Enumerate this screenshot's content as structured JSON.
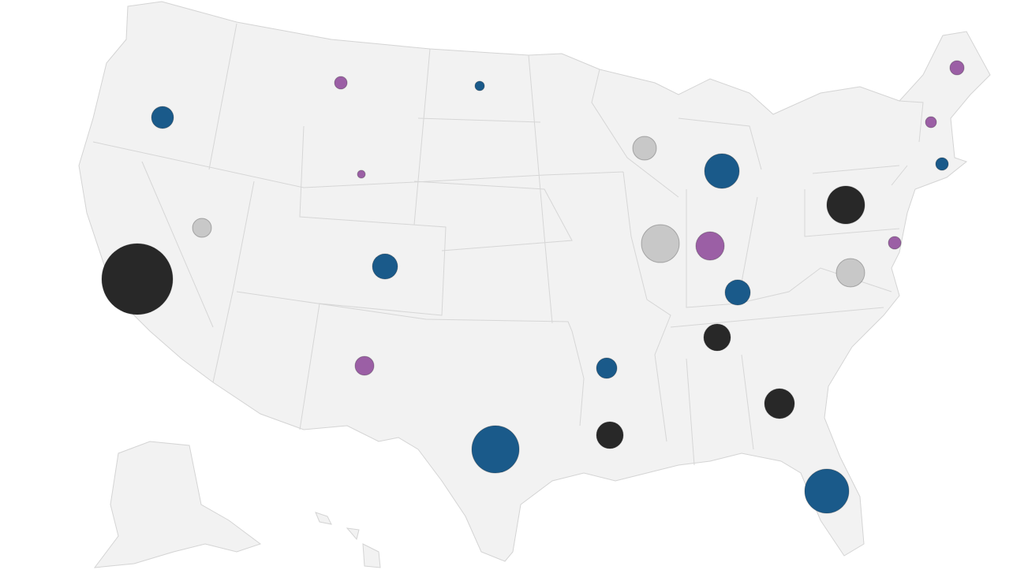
{
  "bubbles": [
    {
      "value": 2025,
      "color": "#282828"
    },
    {
      "value": 144,
      "color": "#c8c8c8"
    },
    {
      "value": 196,
      "color": "#1a5a8a"
    },
    {
      "value": 64,
      "color": "#9b5fa5"
    },
    {
      "value": 25,
      "color": "#9b5fa5"
    },
    {
      "value": 36,
      "color": "#1a5a8a"
    },
    {
      "value": 256,
      "color": "#1a5a8a"
    },
    {
      "value": 144,
      "color": "#9b5fa5"
    },
    {
      "value": 900,
      "color": "#1a5a8a"
    },
    {
      "value": 169,
      "color": "#1a5a8a"
    },
    {
      "value": 289,
      "color": "#282828"
    },
    {
      "value": 289,
      "color": "#282828"
    },
    {
      "value": 256,
      "color": "#1a5a8a"
    },
    {
      "value": 576,
      "color": "#c8c8c8"
    },
    {
      "value": 324,
      "color": "#9b5fa5"
    },
    {
      "value": 225,
      "color": "#c8c8c8"
    },
    {
      "value": 484,
      "color": "#1a5a8a"
    },
    {
      "value": 361,
      "color": "#282828"
    },
    {
      "value": 784,
      "color": "#1a5a8a"
    },
    {
      "value": 576,
      "color": "#282828"
    },
    {
      "value": 324,
      "color": "#c8c8c8"
    },
    {
      "value": 64,
      "color": "#9b5fa5"
    },
    {
      "value": 64,
      "color": "#1a5a8a"
    },
    {
      "value": 49,
      "color": "#9b5fa5"
    },
    {
      "value": 81,
      "color": "#9b5fa5"
    }
  ]
}
